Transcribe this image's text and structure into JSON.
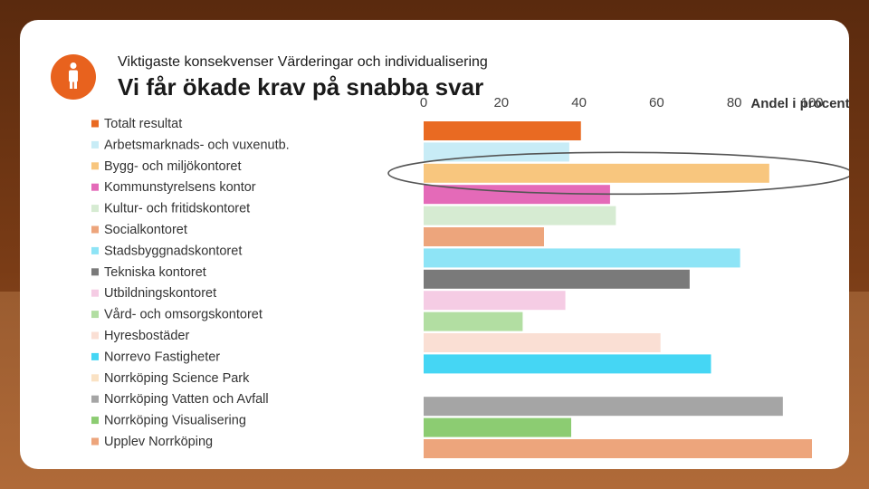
{
  "header": {
    "subtitle": "Viktigaste konsekvenser Värderingar och individualisering",
    "title": "Vi får ökade krav på snabba svar"
  },
  "colors": {
    "accent": "#e8621e"
  },
  "chart_data": {
    "type": "bar",
    "orientation": "horizontal",
    "title": "Vi får ökade krav på snabba svar",
    "xlabel": "Andel i procent",
    "xlim": [
      0,
      100
    ],
    "ticks": [
      0,
      20,
      40,
      60,
      80,
      100
    ],
    "highlight_category": "Bygg- och miljökontoret",
    "categories": [
      "Totalt resultat",
      "Arbetsmarknads- och vuxenutb.",
      "Bygg- och miljökontoret",
      "Kommunstyrelsens kontor",
      "Kultur- och fritidskontoret",
      "Socialkontoret",
      "Stadsbyggnadskontoret",
      "Tekniska kontoret",
      "Utbildningskontoret",
      "Vård- och omsorgskontoret",
      "Hyresbostäder",
      "Norrevo Fastigheter",
      "Norrköping Science Park",
      "Norrköping Vatten och Avfall",
      "Norrköping Visualisering",
      "Upplev Norrköping"
    ],
    "values": [
      40.5,
      37.5,
      89,
      48,
      49.5,
      31,
      81.5,
      68.5,
      36.5,
      25.5,
      61,
      74,
      0,
      92.5,
      38,
      100
    ],
    "colors": [
      "#e96a22",
      "#c8ecf6",
      "#f8c67e",
      "#e46ab8",
      "#d6ebd2",
      "#eda57c",
      "#8ee4f6",
      "#7a7a7a",
      "#f5cce4",
      "#b2dea2",
      "#fadfd4",
      "#45d6f4",
      "#fae2c4",
      "#a5a5a5",
      "#8ccc72",
      "#eda57c"
    ]
  }
}
